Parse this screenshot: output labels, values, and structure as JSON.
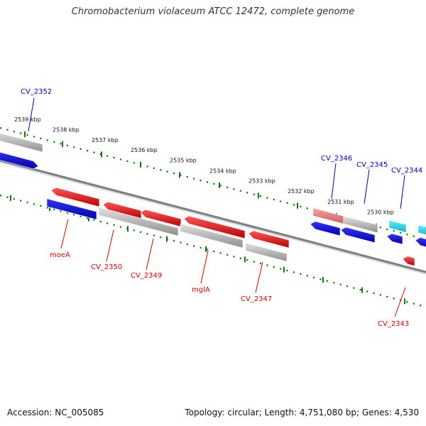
{
  "title": "Chromobacterium violaceum ATCC 12472, complete genome",
  "footer": {
    "accession": "Accession: NC_005085",
    "stats": "Topology: circular; Length: 4,751,080 bp; Genes: 4,530"
  },
  "colors": {
    "forward_gene": "#dd0000",
    "reverse_gene": "#0000dd",
    "other_feature": "#b0b0b0",
    "highlight_feature": "#20d0e0",
    "pseudo_feature": "#e88080",
    "backbone": "#808080",
    "tick": "#117711",
    "forward_label": "#cc0000",
    "reverse_label": "#0000aa"
  },
  "scale_ticks": [
    "2539 kbp",
    "2538 kbp",
    "2537 kbp",
    "2536 kbp",
    "2535 kbp",
    "2534 kbp",
    "2533 kbp",
    "2532 kbp",
    "2531 kbp",
    "2530 kbp"
  ],
  "gene_labels": {
    "reverse": [
      "CV_2352",
      "CV_2346",
      "CV_2345",
      "CV_2344"
    ],
    "forward": [
      "moeA",
      "CV_2350",
      "CV_2349",
      "mglA",
      "CV_2347",
      "CV_2343"
    ]
  }
}
